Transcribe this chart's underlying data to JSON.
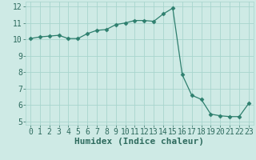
{
  "x": [
    0,
    1,
    2,
    3,
    4,
    5,
    6,
    7,
    8,
    9,
    10,
    11,
    12,
    13,
    14,
    15,
    16,
    17,
    18,
    19,
    20,
    21,
    22,
    23
  ],
  "y": [
    10.05,
    10.15,
    10.2,
    10.25,
    10.05,
    10.05,
    10.35,
    10.55,
    10.6,
    10.9,
    11.0,
    11.15,
    11.15,
    11.1,
    11.55,
    11.9,
    7.85,
    6.6,
    6.35,
    5.45,
    5.35,
    5.3,
    5.3,
    6.1
  ],
  "xlabel": "Humidex (Indice chaleur)",
  "xlim": [
    -0.5,
    23.5
  ],
  "ylim": [
    4.8,
    12.3
  ],
  "yticks": [
    5,
    6,
    7,
    8,
    9,
    10,
    11,
    12
  ],
  "xticks": [
    0,
    1,
    2,
    3,
    4,
    5,
    6,
    7,
    8,
    9,
    10,
    11,
    12,
    13,
    14,
    15,
    16,
    17,
    18,
    19,
    20,
    21,
    22,
    23
  ],
  "line_color": "#2e7f6e",
  "marker": "D",
  "marker_size": 2.5,
  "bg_color": "#ceeae5",
  "grid_color": "#a8d5ce",
  "font_color": "#2e6b5e",
  "xlabel_fontsize": 8,
  "tick_fontsize": 7
}
